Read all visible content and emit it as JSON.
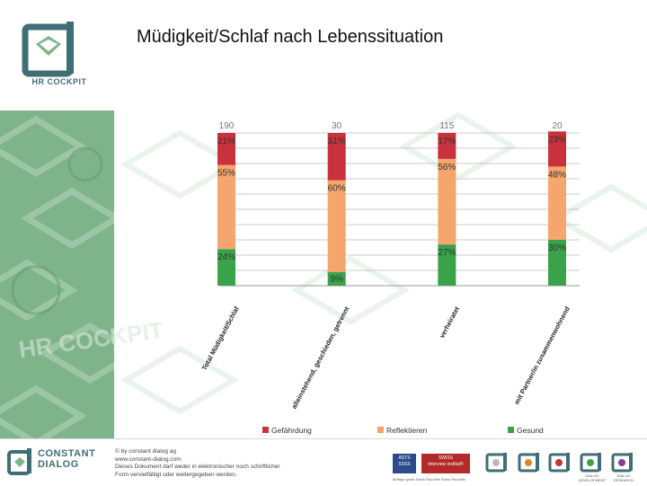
{
  "page": {
    "title": "Müdigkeit/Schlaf nach Lebenssituation",
    "logo_text": "HR COCKPIT",
    "watermark": "HR COCKPIT"
  },
  "chart_data": {
    "type": "bar",
    "stacked": true,
    "orientation": "vertical",
    "value_unit": "%",
    "ylim": [
      0,
      100
    ],
    "grid": true,
    "categories": [
      "Total Müdigkeit/Schlaf",
      "alleinstehend, geschieden, getrennt",
      "verheiratet",
      "mit Partner/in zusammenwohnend"
    ],
    "top_labels": [
      "190",
      "30",
      "115",
      "20"
    ],
    "series": [
      {
        "name": "Gesund",
        "values": [
          24,
          9,
          27,
          30
        ],
        "labels": [
          "24%",
          "9%",
          "27%",
          "30%"
        ],
        "color": "#3aa34a"
      },
      {
        "name": "Reflektieren",
        "values": [
          55,
          60,
          56,
          48
        ],
        "labels": [
          "55%",
          "60%",
          "56%",
          "48%"
        ],
        "color": "#f4a66c"
      },
      {
        "name": "Gefährdung",
        "values": [
          21,
          31,
          17,
          23
        ],
        "labels": [
          "21%",
          "31%",
          "17%",
          "23%"
        ],
        "color": "#c8323c"
      }
    ],
    "legend_position": "bottom"
  },
  "footer": {
    "brand_line1": "CONSTANT",
    "brand_line2": "DIALOG",
    "copyright": "© by constant dialog ag",
    "website": "www.constant-dialog.com",
    "notice_line1": "Dieses Dokument darf weder in elektronischer noch schriftlicher",
    "notice_line2": "Form vervielfältigt oder weitergegeben werden.",
    "badge1_line1": "ASTS",
    "badge1_line2": "SSSS",
    "badge2_line1": "SWISS",
    "badge2_line2": "interview institut®",
    "badge_caption": "Beitäge gratis     Swiss Republik     Swiss Republik",
    "products": [
      "",
      "",
      "",
      "DIALOG DEVELOPMENT",
      "DIALOG RESEARCH"
    ]
  },
  "colors": {
    "accent": "#3f6e76",
    "sidebar_green": "#7fb48a",
    "danger": "#c8323c",
    "reflect": "#f4a66c",
    "healthy": "#3aa34a"
  }
}
